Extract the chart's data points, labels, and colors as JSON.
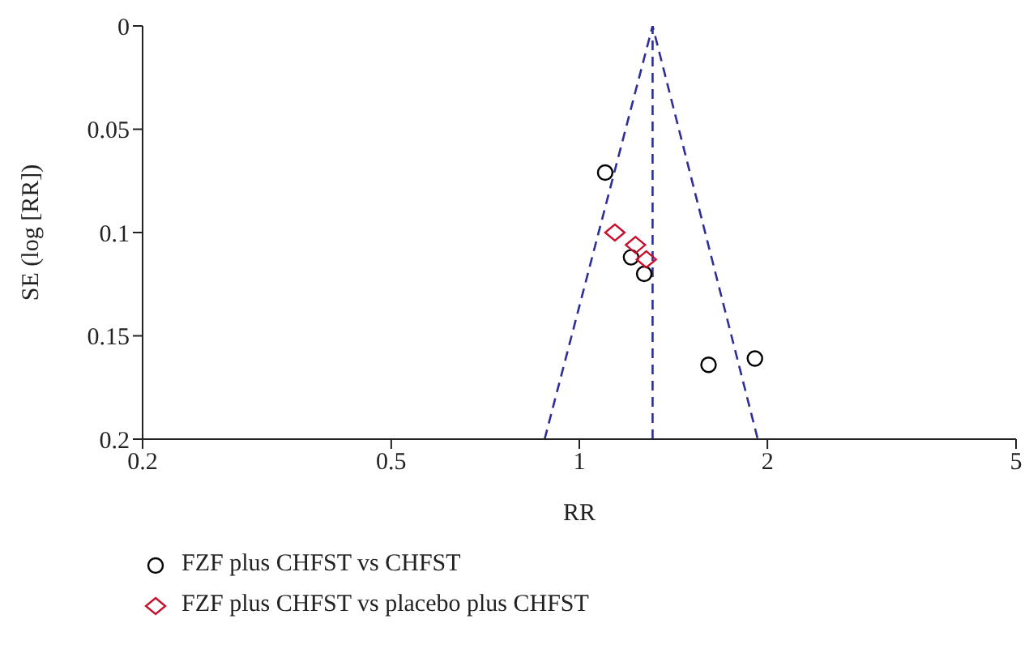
{
  "chart_data": {
    "type": "scatter",
    "xlabel": "RR",
    "ylabel": "SE (log [RR])",
    "log": "x",
    "xlim": [
      0.2,
      5
    ],
    "xticks": [
      0.2,
      0.5,
      1,
      2,
      5
    ],
    "ylim": [
      0.2,
      0
    ],
    "yticks": [
      0,
      0.05,
      0.1,
      0.15,
      0.2
    ],
    "legend": "bottom",
    "series": [
      {
        "name": "FZF plus CHFST vs CHFST",
        "color": "#000000",
        "marker": "circle",
        "x": [
          1.1,
          1.21,
          1.27,
          1.61,
          1.91
        ],
        "values": [
          0.071,
          0.112,
          0.12,
          0.164,
          0.161
        ]
      },
      {
        "name": "FZF plus CHFST vs placebo plus CHFST",
        "color": "#c8102e",
        "marker": "diamond",
        "x": [
          1.14,
          1.23,
          1.28
        ],
        "values": [
          0.1,
          0.106,
          0.113
        ]
      },
      {
        "type": "line",
        "color": "#2e2e9a",
        "line_style": "dashed",
        "marker": "none",
        "x": [
          0.88,
          1.31,
          1.93
        ],
        "values": [
          0.2,
          0,
          0.2
        ]
      }
    ],
    "ref_lines": [
      {
        "axis": "x",
        "value": 1.31,
        "color": "#2e2e9a",
        "line_style": "dashed"
      }
    ]
  }
}
